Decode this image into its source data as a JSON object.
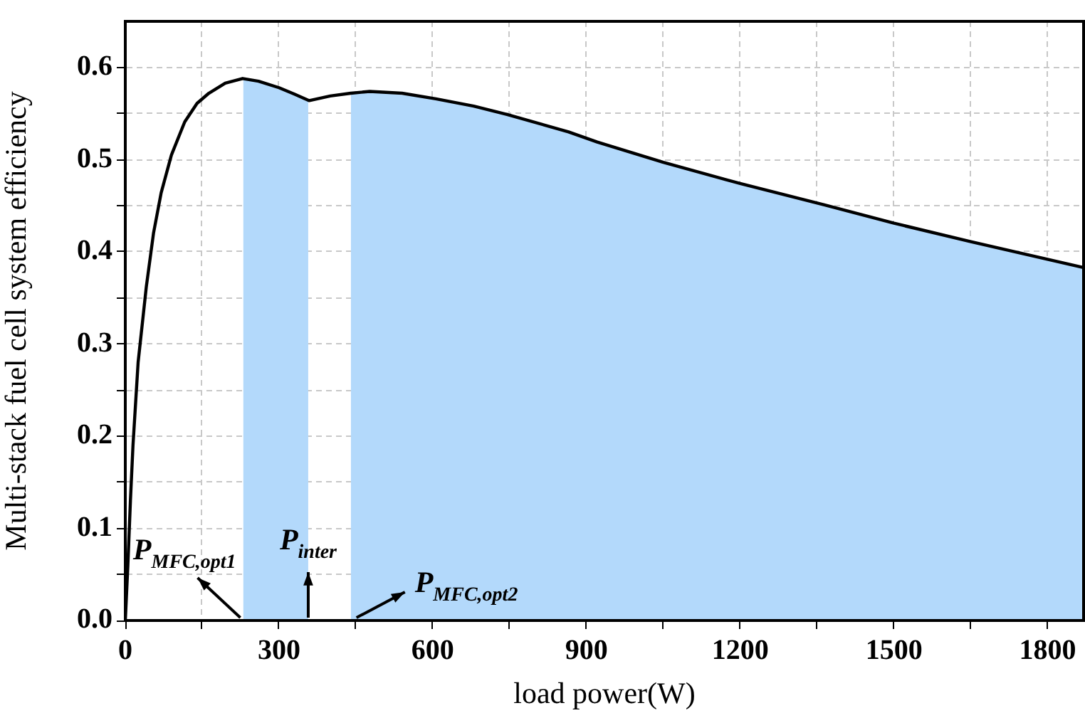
{
  "chart_data": {
    "type": "line",
    "xlabel": "load power(W)",
    "ylabel": "Multi-stack fuel cell system efficiency",
    "series": [
      {
        "type": "area",
        "color": "#b3d9fb",
        "x": [
          230,
          260,
          300,
          330,
          357
        ],
        "values": [
          0.588,
          0.585,
          0.578,
          0.571,
          0.564
        ]
      },
      {
        "type": "area",
        "color": "#b3d9fb",
        "x": [
          440,
          477,
          606,
          745,
          865,
          921,
          1050,
          1200,
          1364,
          1500,
          1650,
          1869
        ],
        "values": [
          0.572,
          0.574,
          0.566,
          0.549,
          0.53,
          0.519,
          0.497,
          0.474,
          0.451,
          0.431,
          0.411,
          0.383
        ]
      },
      {
        "color": "#000000",
        "x": [
          0,
          5,
          10,
          15,
          25,
          41,
          55,
          70,
          90,
          116,
          140,
          163,
          195,
          229,
          260,
          300,
          330,
          359,
          400,
          440,
          477,
          540,
          606,
          680,
          745,
          865,
          921,
          1050,
          1200,
          1364,
          1500,
          1650,
          1869
        ],
        "values": [
          0,
          0.06,
          0.13,
          0.19,
          0.28,
          0.362,
          0.42,
          0.464,
          0.505,
          0.541,
          0.561,
          0.572,
          0.583,
          0.588,
          0.585,
          0.578,
          0.571,
          0.564,
          0.569,
          0.572,
          0.574,
          0.572,
          0.566,
          0.558,
          0.549,
          0.53,
          0.519,
          0.497,
          0.474,
          0.451,
          0.431,
          0.411,
          0.383
        ]
      }
    ],
    "xlim": [
      0,
      1870
    ],
    "ylim": [
      0,
      0.65
    ],
    "xticks": [
      0,
      {
        "value": 150,
        "label": null
      },
      300,
      {
        "value": 450,
        "label": null
      },
      600,
      {
        "value": 750,
        "label": null
      },
      900,
      {
        "value": 1050,
        "label": null
      },
      1200,
      {
        "value": 1350,
        "label": null
      },
      1500,
      {
        "value": 1650,
        "label": null
      },
      1800
    ],
    "yticks": [
      {
        "value": 0,
        "label": "0.0"
      },
      {
        "value": 0.05,
        "label": null
      },
      0.1,
      {
        "value": 0.15,
        "label": null
      },
      0.2,
      {
        "value": 0.25,
        "label": null
      },
      0.3,
      {
        "value": 0.35,
        "label": null
      },
      0.4,
      {
        "value": 0.45,
        "label": null
      },
      0.5,
      {
        "value": 0.55,
        "label": null
      },
      0.6
    ],
    "grid": true,
    "legend": false,
    "marker": "none",
    "line_style": "solid",
    "annotations": [
      {
        "text": "P$_{MFC,opt1}$",
        "x": 230,
        "y": 0
      },
      {
        "text": "P$_{inter}$",
        "x": 357,
        "y": 0
      },
      {
        "text": "P$_{MFC,opt2}$",
        "x": 440,
        "y": 0
      }
    ]
  }
}
